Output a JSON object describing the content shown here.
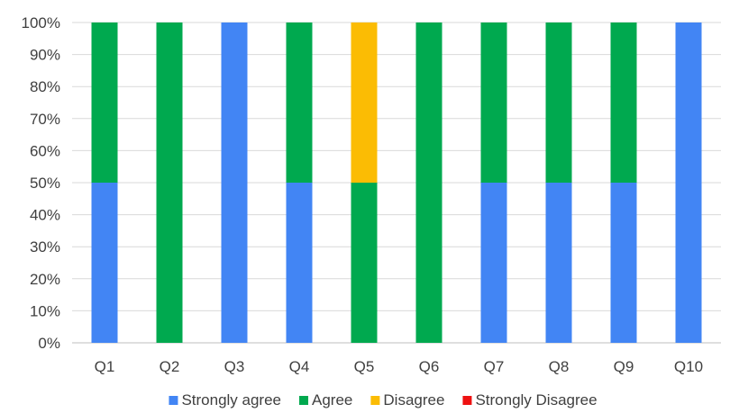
{
  "chart_data": {
    "type": "bar",
    "stacked": true,
    "categories": [
      "Q1",
      "Q2",
      "Q3",
      "Q4",
      "Q5",
      "Q6",
      "Q7",
      "Q8",
      "Q9",
      "Q10"
    ],
    "series": [
      {
        "name": "Strongly agree",
        "color": "#4285F4",
        "values": [
          50,
          0,
          100,
          50,
          0,
          0,
          50,
          50,
          50,
          100
        ]
      },
      {
        "name": "Agree",
        "color": "#00A94F",
        "values": [
          50,
          100,
          0,
          50,
          50,
          100,
          50,
          50,
          50,
          0
        ]
      },
      {
        "name": "Disagree",
        "color": "#FBBC04",
        "values": [
          0,
          0,
          0,
          0,
          50,
          0,
          0,
          0,
          0,
          0
        ]
      },
      {
        "name": "Strongly Disagree",
        "color": "#EE1111",
        "values": [
          0,
          0,
          0,
          0,
          0,
          0,
          0,
          0,
          0,
          0
        ]
      }
    ],
    "ylim": [
      0,
      100
    ],
    "y_ticks": [
      "0%",
      "10%",
      "20%",
      "30%",
      "40%",
      "50%",
      "60%",
      "70%",
      "80%",
      "90%",
      "100%"
    ],
    "grid": true,
    "legend_position": "bottom",
    "title": "",
    "xlabel": "",
    "ylabel": ""
  }
}
